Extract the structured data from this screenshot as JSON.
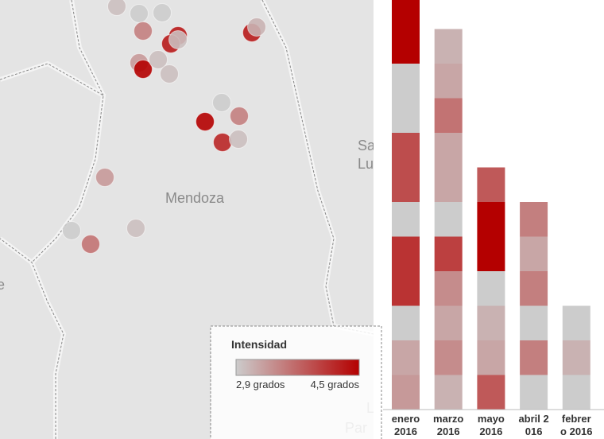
{
  "map": {
    "labels": [
      "Mendoza",
      "Sa",
      "Lu",
      "e",
      "L",
      "Par"
    ],
    "points": [
      3.0,
      2.9,
      2.9,
      3.5,
      4.3,
      4.3,
      3.0,
      4.3,
      3.1,
      3.3,
      4.5,
      3.0,
      3.0,
      2.9,
      4.5,
      3.5,
      4.2,
      3.0,
      3.3,
      2.9,
      3.6,
      3.0
    ]
  },
  "legend": {
    "title": "Intensidad",
    "min": {
      "value": 2.9,
      "label": "2,9 grados"
    },
    "max": {
      "value": 4.5,
      "label": "4,5 grados"
    },
    "color_low": "#cccccc",
    "color_high": "#b40000"
  },
  "chart": {
    "type": "stacked-bar",
    "categories": [
      "enero 2016",
      "marzo 2016",
      "mayo 2016",
      "abril 2016",
      "febrero 2016"
    ],
    "segments": [
      [
        3.3,
        3.2,
        2.9,
        4.1,
        4.1,
        2.9,
        3.9,
        3.9,
        2.9,
        2.9,
        4.5,
        4.5
      ],
      [
        3.1,
        3.4,
        3.2,
        3.4,
        4.0,
        2.9,
        3.2,
        3.2,
        3.6,
        3.2,
        3.1
      ],
      [
        3.8,
        3.2,
        3.1,
        2.9,
        4.5,
        4.5,
        3.8
      ],
      [
        2.9,
        3.5,
        2.9,
        3.5,
        3.2,
        3.5
      ],
      [
        2.9,
        3.1,
        2.9
      ]
    ]
  }
}
